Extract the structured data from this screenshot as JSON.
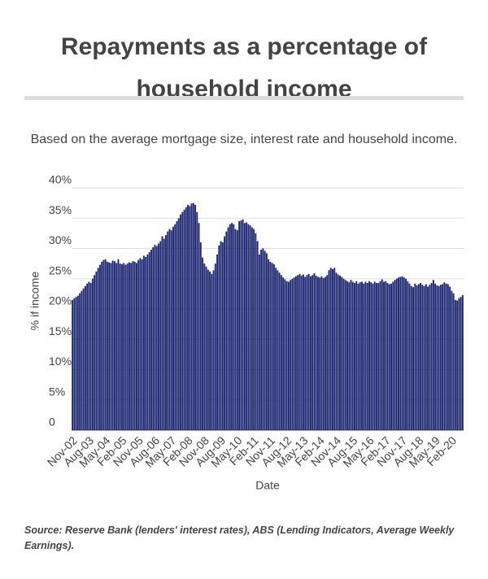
{
  "chart_data": {
    "type": "bar",
    "title": "Repayments as a percentage of household income",
    "subtitle": "Based on the average mortgage size, interest rate and household income.",
    "y_label": "% if income",
    "x_label": "Date",
    "source": "Source: Reserve Bank (lenders' interest rates), ABS (Lending Indicators, Average Weekly Earnings).",
    "color": "#1c2570",
    "grid": true,
    "ylim": [
      0,
      40
    ],
    "yticks": [
      {
        "value": 0,
        "label": "0"
      },
      {
        "value": 5,
        "label": "5%"
      },
      {
        "value": 10,
        "label": "10%"
      },
      {
        "value": 15,
        "label": "15%"
      },
      {
        "value": 20,
        "label": "20%"
      },
      {
        "value": 25,
        "label": "25%"
      },
      {
        "value": 30,
        "label": "30%"
      },
      {
        "value": 35,
        "label": "35%"
      },
      {
        "value": 40,
        "label": "40%"
      }
    ],
    "categories": [
      "Nov-02",
      null,
      null,
      null,
      null,
      null,
      null,
      null,
      null,
      "Aug-03",
      null,
      null,
      null,
      null,
      null,
      null,
      null,
      null,
      "May-04",
      null,
      null,
      null,
      null,
      null,
      null,
      null,
      null,
      "Feb-05",
      null,
      null,
      null,
      null,
      null,
      null,
      null,
      null,
      "Nov-05",
      null,
      null,
      null,
      null,
      null,
      null,
      null,
      null,
      "Aug-06",
      null,
      null,
      null,
      null,
      null,
      null,
      null,
      null,
      "May-07",
      null,
      null,
      null,
      null,
      null,
      null,
      null,
      null,
      "Feb-08",
      null,
      null,
      null,
      null,
      null,
      null,
      null,
      null,
      "Nov-08",
      null,
      null,
      null,
      null,
      null,
      null,
      null,
      null,
      "Aug-09",
      null,
      null,
      null,
      null,
      null,
      null,
      null,
      null,
      "May-10",
      null,
      null,
      null,
      null,
      null,
      null,
      null,
      null,
      "Feb-11",
      null,
      null,
      null,
      null,
      null,
      null,
      null,
      null,
      "Nov-11",
      null,
      null,
      null,
      null,
      null,
      null,
      null,
      null,
      "Aug-12",
      null,
      null,
      null,
      null,
      null,
      null,
      null,
      null,
      "May-13",
      null,
      null,
      null,
      null,
      null,
      null,
      null,
      null,
      "Feb-14",
      null,
      null,
      null,
      null,
      null,
      null,
      null,
      null,
      "Nov-14",
      null,
      null,
      null,
      null,
      null,
      null,
      null,
      null,
      "Aug-15",
      null,
      null,
      null,
      null,
      null,
      null,
      null,
      null,
      "May-16",
      null,
      null,
      null,
      null,
      null,
      null,
      null,
      null,
      "Feb-17",
      null,
      null,
      null,
      null,
      null,
      null,
      null,
      null,
      "Nov-17",
      null,
      null,
      null,
      null,
      null,
      null,
      null,
      null,
      "Aug-18",
      null,
      null,
      null,
      null,
      null,
      null,
      null,
      null,
      "May-19",
      null,
      null,
      null,
      null,
      null,
      null,
      null,
      null,
      "Feb-20",
      null,
      null,
      null,
      null,
      null,
      null
    ],
    "values": [
      21.5,
      21.8,
      22,
      22.2,
      22.6,
      23,
      23.4,
      23.8,
      24.2,
      24.5,
      24.3,
      25,
      25.6,
      26.2,
      26.8,
      27.3,
      27.8,
      28.1,
      28.2,
      27.8,
      27.7,
      27.6,
      28,
      27.9,
      27.6,
      28.2,
      27.5,
      27.4,
      27.6,
      27.3,
      27.5,
      27.7,
      27.6,
      27.9,
      27.8,
      27.6,
      28.1,
      28.4,
      28.2,
      28.8,
      28.6,
      29,
      29.4,
      29.8,
      30.2,
      30.6,
      30.4,
      30.8,
      31.2,
      32,
      31.6,
      32.2,
      32.8,
      33.2,
      33,
      33.6,
      34,
      34.5,
      35,
      35.6,
      36,
      36.4,
      36.8,
      37.2,
      37,
      37.4,
      37.5,
      37.2,
      36,
      34.2,
      31,
      28.5,
      27.5,
      27,
      26.5,
      26.2,
      25.8,
      26.4,
      27.5,
      29,
      30.5,
      31.2,
      31,
      32,
      32.8,
      33.5,
      34,
      34.2,
      34,
      33.2,
      33,
      34.5,
      34.6,
      34.8,
      34.2,
      34.3,
      34,
      33.8,
      33.5,
      33.2,
      32.5,
      31.2,
      29,
      29.8,
      30,
      29.6,
      29.2,
      28.2,
      27.8,
      27.6,
      27.4,
      26.8,
      26.4,
      26,
      25.6,
      25.2,
      24.9,
      24.6,
      24.5,
      24.8,
      25,
      25.2,
      25.4,
      25.6,
      25.8,
      25.5,
      25.7,
      25.3,
      25.6,
      25.8,
      25.4,
      25.6,
      25.9,
      25.5,
      25.3,
      25.2,
      25.4,
      25.1,
      25.3,
      25.6,
      26.4,
      26.8,
      26.6,
      26.8,
      26,
      25.7,
      25.5,
      25.3,
      25,
      24.8,
      24.6,
      24.4,
      24.8,
      24.5,
      24.3,
      24.6,
      24.2,
      24.4,
      24.5,
      24.2,
      24.5,
      24.3,
      24.6,
      24.4,
      24.2,
      24.5,
      24.3,
      24.3,
      24.6,
      24.9,
      24.5,
      24.6,
      24.3,
      24.1,
      24.2,
      24.5,
      24.8,
      25,
      25.2,
      25.3,
      25.4,
      25.2,
      25,
      24.6,
      24.2,
      23.8,
      23.6,
      24.2,
      23.9,
      24.1,
      24.3,
      24,
      23.8,
      24.1,
      23.7,
      24,
      24.3,
      24.8,
      24.2,
      23.9,
      23.8,
      24,
      24.1,
      24.4,
      24.2,
      24.1,
      23.7,
      23,
      22.6,
      21.5,
      21.4,
      21.8,
      22,
      22.3
    ]
  }
}
